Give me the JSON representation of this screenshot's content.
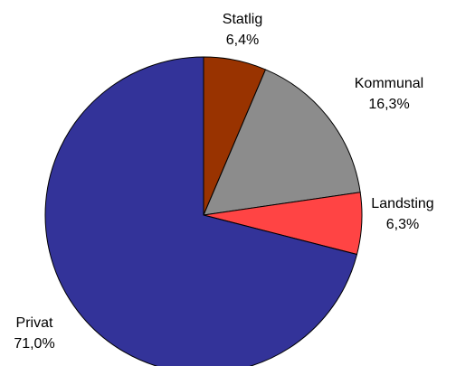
{
  "chart_data": {
    "type": "pie",
    "categories": [
      "Statlig",
      "Kommunal",
      "Landsting",
      "Privat"
    ],
    "values": [
      6.4,
      16.3,
      6.3,
      71.0
    ],
    "value_labels": [
      "6,4%",
      "16,3%",
      "6,3%",
      "71,0%"
    ],
    "colors": [
      "#993300",
      "#8c8c8c",
      "#ff4444",
      "#333399"
    ]
  }
}
